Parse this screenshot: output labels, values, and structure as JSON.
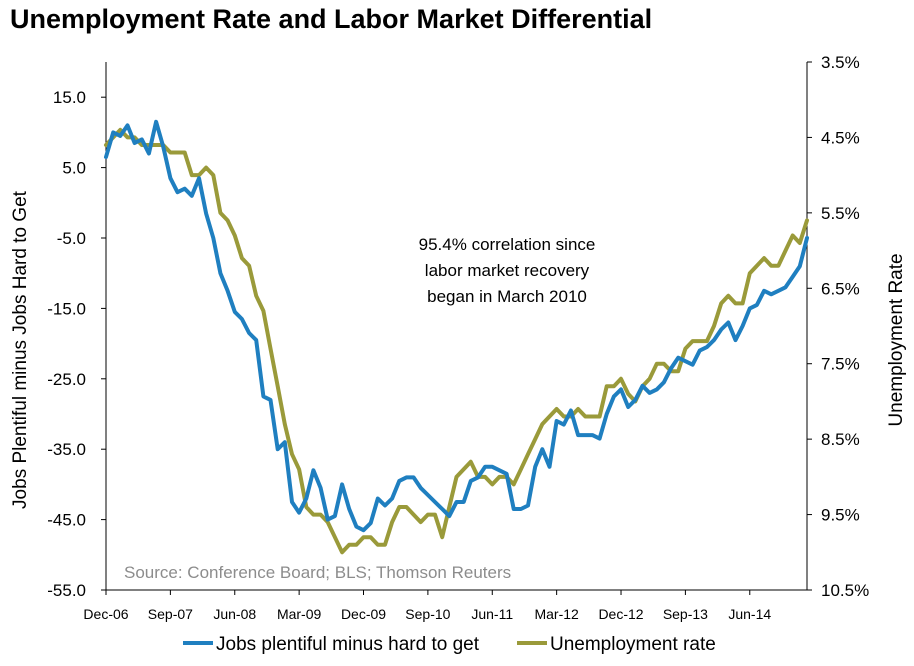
{
  "chart_data": {
    "type": "line",
    "title": "Unemployment Rate and Labor Market Differential",
    "ylabel_left": "Jobs Plentiful minus Jobs Hard to Get",
    "ylabel_right": "Unemployment Rate",
    "ylim_left": [
      -55,
      20
    ],
    "yticks_left": [
      "15.0",
      "5.0",
      "-5.0",
      "-15.0",
      "-25.0",
      "-35.0",
      "-45.0",
      "-55.0"
    ],
    "ylim_right": [
      3.5,
      10.5
    ],
    "yticks_right": [
      "3.5%",
      "4.5%",
      "5.5%",
      "6.5%",
      "7.5%",
      "8.5%",
      "9.5%",
      "10.5%"
    ],
    "right_axis_inverted": true,
    "x_tick_labels": [
      "Dec-06",
      "Sep-07",
      "Jun-08",
      "Mar-09",
      "Dec-09",
      "Sep-10",
      "Jun-11",
      "Mar-12",
      "Dec-12",
      "Sep-13",
      "Jun-14"
    ],
    "annotation": [
      "95.4% correlation since",
      "labor market recovery",
      "began in March 2010"
    ],
    "source": "Source: Conference Board; BLS; Thomson Reuters",
    "colors": {
      "jobs": "#1f7fc0",
      "unemployment": "#9a9a3a"
    },
    "series": [
      {
        "name": "Jobs plentiful minus hard to get",
        "axis": "left",
        "values": [
          6.5,
          10.0,
          9.5,
          11.0,
          8.5,
          9.0,
          7.0,
          11.5,
          8.0,
          3.5,
          1.5,
          2.0,
          1.0,
          3.5,
          -1.5,
          -5.0,
          -10.0,
          -12.5,
          -15.5,
          -16.5,
          -18.5,
          -19.5,
          -27.5,
          -28.0,
          -35.0,
          -34.0,
          -42.5,
          -44.0,
          -42.0,
          -38.0,
          -40.5,
          -45.0,
          -44.5,
          -40.0,
          -43.5,
          -46.0,
          -46.5,
          -45.5,
          -42.0,
          -43.0,
          -42.0,
          -39.5,
          -39.0,
          -39.0,
          -40.5,
          -41.5,
          -42.5,
          -43.5,
          -44.5,
          -42.5,
          -42.5,
          -39.5,
          -39.0,
          -37.5,
          -37.5,
          -38.0,
          -38.5,
          -43.5,
          -43.5,
          -43.0,
          -37.5,
          -35.0,
          -37.5,
          -31.0,
          -31.5,
          -29.5,
          -33.0,
          -33.0,
          -33.0,
          -33.5,
          -30.0,
          -27.5,
          -26.5,
          -29.0,
          -28.0,
          -26.0,
          -27.0,
          -26.5,
          -25.5,
          -23.5,
          -22.0,
          -22.5,
          -23.0,
          -21.0,
          -20.5,
          -19.5,
          -18.0,
          -17.0,
          -19.5,
          -17.5,
          -15.0,
          -14.5,
          -12.5,
          -13.0,
          -12.5,
          -12.0,
          -10.5,
          -9.0,
          -5.0
        ]
      },
      {
        "name": "Unemployment rate",
        "axis": "right",
        "values": [
          4.6,
          4.5,
          4.4,
          4.5,
          4.5,
          4.6,
          4.6,
          4.6,
          4.6,
          4.7,
          4.7,
          4.7,
          5.0,
          5.0,
          4.9,
          5.0,
          5.5,
          5.6,
          5.8,
          6.1,
          6.2,
          6.6,
          6.8,
          7.3,
          7.8,
          8.3,
          8.7,
          8.9,
          9.4,
          9.5,
          9.5,
          9.6,
          9.8,
          10.0,
          9.9,
          9.9,
          9.8,
          9.8,
          9.9,
          9.9,
          9.6,
          9.4,
          9.4,
          9.5,
          9.6,
          9.5,
          9.5,
          9.8,
          9.4,
          9.0,
          8.9,
          8.8,
          9.0,
          9.0,
          9.1,
          9.0,
          9.0,
          9.1,
          8.9,
          8.7,
          8.5,
          8.3,
          8.2,
          8.1,
          8.2,
          8.2,
          8.1,
          8.2,
          8.2,
          8.2,
          7.8,
          7.8,
          7.7,
          7.9,
          8.0,
          7.8,
          7.7,
          7.5,
          7.5,
          7.6,
          7.6,
          7.3,
          7.2,
          7.2,
          7.2,
          7.0,
          6.7,
          6.6,
          6.7,
          6.7,
          6.3,
          6.2,
          6.1,
          6.2,
          6.2,
          6.0,
          5.8,
          5.9,
          5.6
        ]
      }
    ]
  },
  "legend": [
    {
      "label": "Jobs plentiful minus hard to get",
      "key": "jobs"
    },
    {
      "label": "Unemployment rate",
      "key": "unemployment"
    }
  ]
}
